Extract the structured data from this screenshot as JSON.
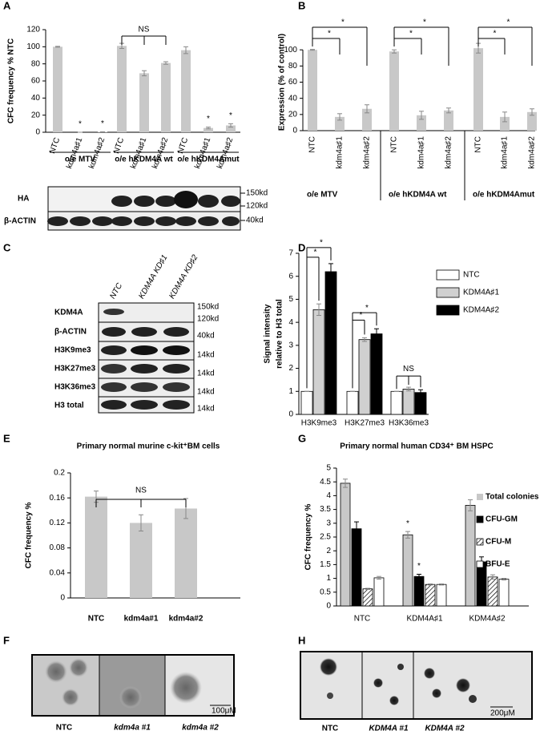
{
  "panel_labels": [
    "A",
    "B",
    "C",
    "D",
    "E",
    "F",
    "G",
    "H"
  ],
  "chart_data": [
    {
      "type": "bar",
      "ylabel": "CFC frequency % NTC",
      "categories": [
        "NTC",
        "kdm4a♯1",
        "kdm4a♯2",
        "NTC",
        "kdm4a♯1",
        "kdm4a♯2",
        "NTC",
        "kdm4a♯1",
        "kdm4a♯2"
      ],
      "group_labels": [
        "o/e MTV",
        "o/e hKDM4A wt",
        "o/e hKDM4Amut"
      ],
      "series": [
        {
          "color": "#c8c8c8",
          "values": [
            100,
            0,
            0.5,
            101,
            69,
            81,
            96,
            5,
            8
          ],
          "errors": [
            0.5,
            0,
            0,
            3,
            3,
            1.5,
            4,
            1,
            2
          ],
          "significance": [
            null,
            "*",
            "*",
            null,
            null,
            null,
            null,
            "*",
            "*"
          ]
        }
      ],
      "group_annotations": [
        null,
        "NS",
        null
      ],
      "ylim": [
        0,
        120
      ],
      "yticks": [
        0,
        20,
        40,
        60,
        80,
        100,
        120
      ]
    },
    {
      "type": "bar",
      "ylabel": "Expression (% of control)",
      "categories": [
        "NTC",
        "kdm4a♯1",
        "kdm4a♯2",
        "NTC",
        "kdm4a♯1",
        "kdm4a♯2",
        "NTC",
        "kdm4a♯1",
        "kdm4a♯2"
      ],
      "group_labels": [
        "o/e MTV",
        "o/e hKDM4A wt",
        "o/e hKDM4Amut"
      ],
      "series": [
        {
          "color": "#c8c8c8",
          "values": [
            100,
            17,
            27,
            98,
            19,
            25,
            102,
            17,
            23
          ],
          "errors": [
            0.5,
            4,
            5,
            2,
            5,
            3,
            6,
            6,
            4
          ],
          "significance": [
            null,
            "*",
            "*",
            null,
            "*",
            "*",
            null,
            "*",
            "*"
          ]
        }
      ],
      "ylim": [
        0,
        120
      ],
      "yticks": [
        0,
        20,
        40,
        60,
        80,
        100
      ]
    },
    {
      "type": "bar",
      "ylabel": [
        "Signal intensity",
        "relative to H3 total"
      ],
      "categories": [
        "H3K9me3",
        "H3K27me3",
        "H3K36me3"
      ],
      "series": [
        {
          "name": "NTC",
          "color": "#ffffff",
          "values": [
            1,
            1,
            1
          ],
          "errors": [
            0,
            0,
            0
          ],
          "significance": [
            null,
            null,
            null
          ]
        },
        {
          "name": "KDM4A♯1",
          "color": "#d0d0d0",
          "values": [
            4.55,
            3.25,
            1.1
          ],
          "errors": [
            0.25,
            0.08,
            0.08
          ],
          "significance": [
            "*",
            "*",
            null
          ]
        },
        {
          "name": "KDM4A♯2",
          "color": "#000000",
          "values": [
            6.2,
            3.5,
            0.95
          ],
          "errors": [
            0.35,
            0.22,
            0.12
          ],
          "significance": [
            "*",
            "*",
            null
          ]
        }
      ],
      "category_annotations": [
        null,
        null,
        "NS"
      ],
      "ylim": [
        0,
        7
      ],
      "yticks": [
        0,
        1,
        2,
        3,
        4,
        5,
        6,
        7
      ]
    },
    {
      "type": "bar",
      "title": "Primary normal murine c-kit⁺BM cells",
      "ylabel": "CFC frequency %",
      "categories": [
        "NTC",
        "kdm4a#1",
        "kdm4a#2"
      ],
      "series": [
        {
          "color": "#c8c8c8",
          "values": [
            0.162,
            0.12,
            0.143
          ],
          "errors": [
            0.009,
            0.013,
            0.016
          ],
          "significance": [
            null,
            null,
            null
          ]
        }
      ],
      "annotation": "NS",
      "ylim": [
        0,
        0.2
      ],
      "yticks": [
        0,
        0.04,
        0.08,
        0.12,
        0.16,
        0.2
      ]
    },
    {
      "type": "bar",
      "title": "Primary normal human CD34⁺ BM HSPC",
      "ylabel": "CFC frequency %",
      "categories": [
        "NTC",
        "KDM4A♯1",
        "KDM4A♯2"
      ],
      "series": [
        {
          "name": "Total colonies",
          "color": "#c8c8c8",
          "values": [
            4.45,
            2.58,
            3.65
          ],
          "errors": [
            0.15,
            0.12,
            0.2
          ],
          "significance": [
            null,
            "*",
            null
          ]
        },
        {
          "name": "CFU-GM",
          "color": "#000000",
          "values": [
            2.8,
            1.07,
            1.6
          ],
          "errors": [
            0.25,
            0.08,
            0.18
          ],
          "significance": [
            null,
            "*",
            null
          ]
        },
        {
          "name": "CFU-M",
          "color": "#ffffff",
          "hatch": true,
          "values": [
            0.62,
            0.78,
            1.05
          ],
          "errors": [
            0.02,
            0.02,
            0.08
          ],
          "significance": [
            null,
            null,
            null
          ]
        },
        {
          "name": "BFU-E",
          "color": "#ffffff",
          "values": [
            1.02,
            0.78,
            0.97
          ],
          "errors": [
            0.05,
            0.02,
            0.03
          ],
          "significance": [
            null,
            null,
            null
          ]
        }
      ],
      "ylim": [
        0,
        5
      ],
      "yticks": [
        0,
        0.5,
        1,
        1.5,
        2,
        2.5,
        3,
        3.5,
        4,
        4.5,
        5
      ]
    }
  ],
  "blots": {
    "A": {
      "rows": [
        "HA",
        "β-ACTIN"
      ],
      "sizes": [
        "150kd",
        "120kd",
        "40kd"
      ]
    },
    "C": {
      "lanes": [
        "NTC",
        "KDM4A KD♯1",
        "KDM4A KD♯2"
      ],
      "rows": [
        "KDM4A",
        "β-ACTIN",
        "H3K9me3",
        "H3K27me3",
        "H3K36me3",
        "H3 total"
      ],
      "sizes": [
        "150kd",
        "120kd",
        "40kd",
        "14kd",
        "14kd",
        "14kd",
        "14kd"
      ]
    }
  },
  "images": {
    "F": {
      "labels": [
        "NTC",
        "kdm4a #1",
        "kdm4a #2"
      ],
      "scale": "100μM"
    },
    "H": {
      "labels": [
        "NTC",
        "KDM4A #1",
        "KDM4A #2"
      ],
      "scale": "200μM"
    }
  }
}
